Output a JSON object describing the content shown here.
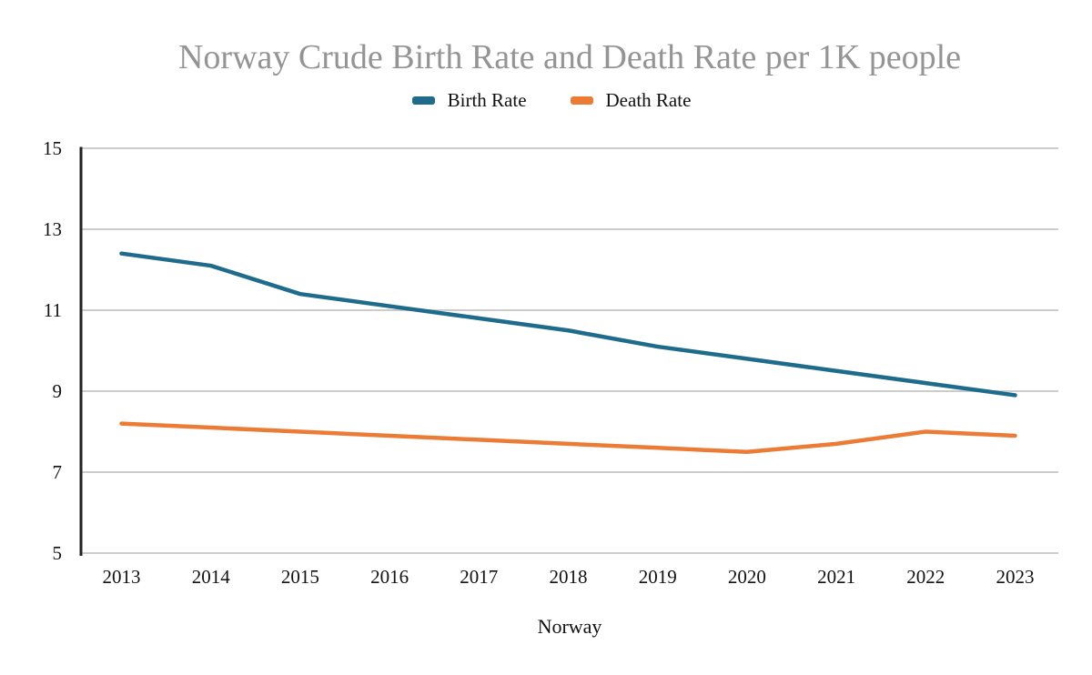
{
  "chart_data": {
    "type": "line",
    "title": "Norway Crude Birth Rate and Death Rate per 1K people",
    "xlabel": "Norway",
    "ylabel": "",
    "x": [
      2013,
      2014,
      2015,
      2016,
      2017,
      2018,
      2019,
      2020,
      2021,
      2022,
      2023
    ],
    "series": [
      {
        "name": "Birth Rate",
        "color": "#1f6b8c",
        "values": [
          12.4,
          12.1,
          11.4,
          11.1,
          10.8,
          10.5,
          10.1,
          9.8,
          9.5,
          9.2,
          8.9
        ]
      },
      {
        "name": "Death Rate",
        "color": "#ec7b35",
        "values": [
          8.2,
          8.1,
          8.0,
          7.9,
          7.8,
          7.7,
          7.6,
          7.5,
          7.7,
          8.0,
          7.9
        ]
      }
    ],
    "ylim": [
      5,
      15
    ],
    "yticks": [
      5,
      7,
      9,
      11,
      13,
      15
    ],
    "grid": true,
    "legend_position": "top",
    "colors": {
      "title_text": "#949494",
      "tick_text": "#111111",
      "gridline": "#cccccc",
      "y_axis_line": "#222222",
      "background": "#ffffff"
    }
  }
}
